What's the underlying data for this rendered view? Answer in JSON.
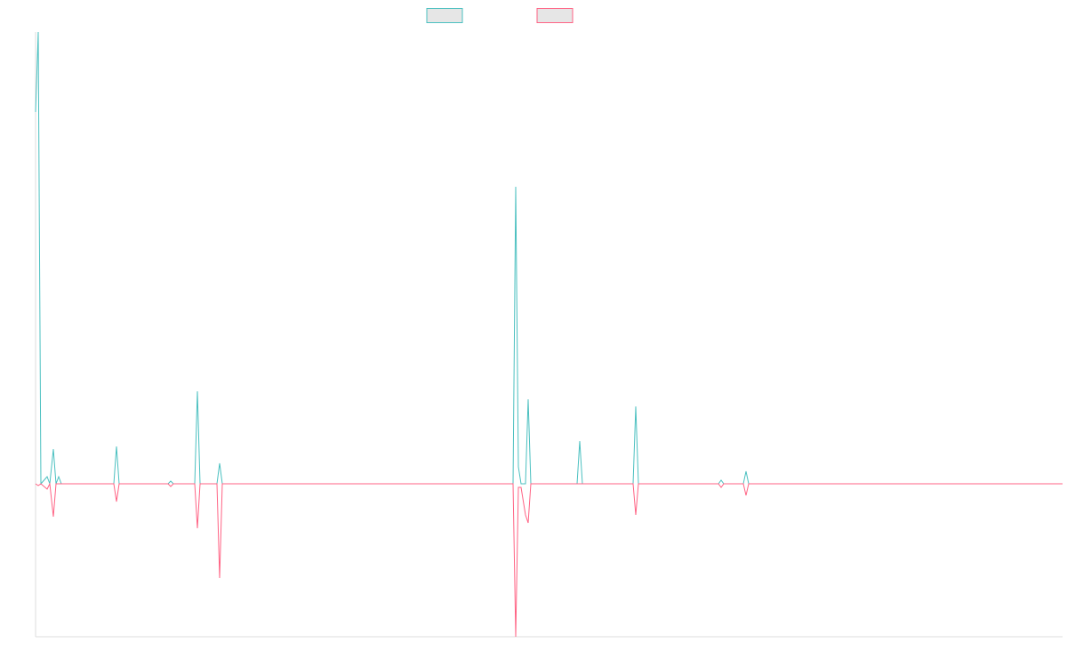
{
  "chart_data": {
    "type": "line",
    "x": [
      0,
      3,
      6,
      13,
      16,
      20,
      23,
      26,
      29,
      88,
      91,
      94,
      149,
      152,
      155,
      179,
      182,
      185,
      204,
      207,
      210,
      537,
      540,
      543,
      546,
      551,
      554,
      557,
      609,
      612,
      615,
      672,
      675,
      678,
      768,
      771,
      774,
      796,
      799,
      802,
      1155
    ],
    "series": [
      {
        "color": "#4bc0c0",
        "values": [
          418,
          508,
          0,
          8,
          0,
          39,
          0,
          8,
          0,
          0,
          42,
          0,
          0,
          3,
          0,
          0,
          104,
          0,
          0,
          23,
          0,
          0,
          334,
          19,
          0,
          0,
          95,
          0,
          0,
          48,
          0,
          0,
          87,
          0,
          0,
          4,
          0,
          0,
          14,
          0,
          0
        ]
      },
      {
        "color": "#ff6384",
        "values": [
          0,
          -2,
          0,
          -6,
          0,
          -37,
          0,
          0,
          0,
          0,
          -20,
          0,
          0,
          -3,
          0,
          0,
          -50,
          0,
          0,
          -106,
          0,
          0,
          -172,
          -4,
          -4,
          -35,
          -44,
          0,
          0,
          0,
          0,
          0,
          -35,
          0,
          0,
          -4,
          0,
          0,
          -13,
          0,
          0
        ]
      }
    ],
    "xlim": [
      0,
      1155
    ],
    "ylim": [
      -172,
      508
    ]
  }
}
